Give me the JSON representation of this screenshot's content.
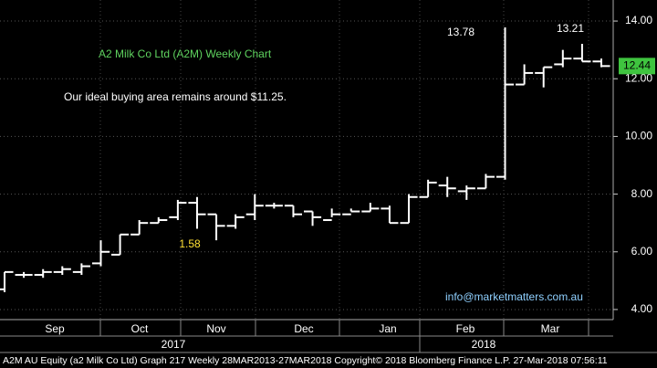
{
  "chart_data": {
    "type": "ohlc",
    "title": "A2 Milk Co Ltd (A2M) Weekly Chart",
    "subtitle": "Our ideal buying area remains around $11.25.",
    "annotations": [
      "13.78",
      "13.21",
      "1.58"
    ],
    "watermark": "info@marketmatters.com.au",
    "footer": "A2M AU Equity (a2 Milk Co Ltd) Graph 217  Weekly 28MAR2013-27MAR2018 Copyright© 2018 Bloomberg Finance L.P. 27-Mar-2018 07:56:11",
    "months": [
      "Sep",
      "Oct",
      "Nov",
      "Dec",
      "Jan",
      "Feb",
      "Mar"
    ],
    "years": [
      "2017",
      "2018"
    ],
    "last_price": 12.44,
    "color": "#ffffff",
    "categories": [
      null,
      null,
      null,
      null,
      null,
      null,
      null,
      null,
      null,
      null,
      null,
      null,
      null,
      null,
      null,
      null,
      null,
      null,
      null,
      null,
      null,
      null,
      null,
      null,
      null,
      null,
      null,
      null,
      null,
      null,
      null,
      null
    ],
    "open": [
      4.7,
      5.2,
      5.2,
      5.3,
      5.3,
      5.6,
      5.9,
      6.6,
      7.0,
      7.2,
      7.7,
      7.3,
      6.9,
      7.3,
      7.6,
      7.6,
      7.4,
      7.1,
      7.3,
      7.4,
      7.5,
      7.0,
      7.9,
      8.3,
      8.1,
      8.2,
      8.6,
      11.8,
      12.2,
      12.5,
      12.7,
      12.6
    ],
    "high": [
      5.3,
      5.3,
      5.4,
      5.5,
      5.6,
      6.4,
      6.6,
      7.1,
      7.2,
      7.8,
      7.9,
      7.3,
      7.3,
      8.0,
      7.7,
      7.6,
      7.4,
      7.5,
      7.5,
      7.7,
      7.6,
      8.0,
      8.5,
      8.6,
      8.3,
      8.7,
      13.78,
      12.5,
      12.4,
      13.0,
      13.21,
      12.7
    ],
    "low": [
      4.6,
      5.1,
      5.1,
      5.2,
      5.2,
      5.5,
      5.9,
      6.6,
      7.0,
      7.1,
      6.8,
      6.4,
      6.8,
      7.1,
      7.5,
      7.2,
      6.9,
      7.2,
      7.4,
      7.4,
      7.0,
      7.0,
      7.9,
      7.9,
      7.8,
      8.2,
      8.5,
      11.8,
      11.7,
      12.4,
      12.6,
      12.4
    ],
    "close": [
      5.3,
      5.2,
      5.3,
      5.4,
      5.5,
      6.0,
      6.6,
      7.0,
      7.1,
      7.7,
      7.3,
      6.9,
      7.2,
      7.6,
      7.6,
      7.3,
      7.2,
      7.3,
      7.4,
      7.5,
      7.0,
      7.9,
      8.4,
      8.2,
      8.2,
      8.6,
      11.8,
      12.2,
      12.4,
      12.7,
      12.6,
      12.44
    ],
    "ylim": [
      3.65,
      14.73
    ],
    "yticks": [
      {
        "value": 4,
        "label": "4.00"
      },
      {
        "value": 6,
        "label": "6.00"
      },
      {
        "value": 8,
        "label": "8.00"
      },
      {
        "value": 10,
        "label": "10.00"
      },
      {
        "value": 12,
        "label": "12.00"
      },
      {
        "value": 14,
        "label": "14.00"
      }
    ],
    "grid": true
  }
}
